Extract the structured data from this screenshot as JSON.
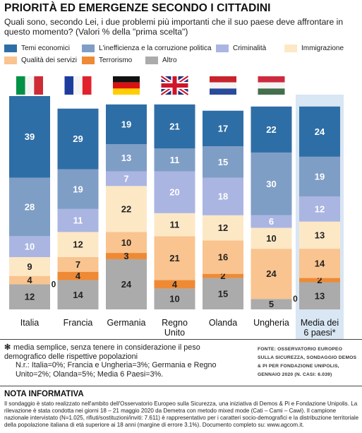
{
  "title": "PRIORITÀ ED EMERGENZE SECONDO I CITTADINI",
  "subtitle": "Quali sono, secondo Lei, i due problemi più importanti che il suo paese deve affrontare in questo momento? (Valori % della \"prima scelta\")",
  "legend": [
    {
      "label": "Temi economici",
      "color": "#2e6ea6"
    },
    {
      "label": "L'inefficienza e la corruzione politica",
      "color": "#7f9ec6"
    },
    {
      "label": "Criminalità",
      "color": "#aab5e2"
    },
    {
      "label": "Immigrazione",
      "color": "#fde8c6"
    },
    {
      "label": "Qualità dei servizi",
      "color": "#f9c48f"
    },
    {
      "label": "Terrorismo",
      "color": "#ee8a35"
    },
    {
      "label": "Altro",
      "color": "#ababab"
    }
  ],
  "chart_data": {
    "type": "bar",
    "stacked": true,
    "categories": [
      "Italia",
      "Francia",
      "Germania",
      "Regno Unito",
      "Olanda",
      "Ungheria",
      "Media dei 6 paesi*"
    ],
    "flags": [
      "italy-flag-icon",
      "france-flag-icon",
      "germany-flag-icon",
      "uk-flag-icon",
      "netherlands-flag-icon",
      "hungary-flag-icon",
      ""
    ],
    "series": [
      {
        "name": "Altro",
        "color": "#ababab",
        "values": [
          12,
          14,
          24,
          10,
          15,
          5,
          13
        ]
      },
      {
        "name": "Terrorismo",
        "color": "#ee8a35",
        "values": [
          0,
          4,
          3,
          4,
          2,
          0,
          2
        ]
      },
      {
        "name": "Qualità dei servizi",
        "color": "#f9c48f",
        "values": [
          4,
          7,
          10,
          21,
          16,
          24,
          14
        ]
      },
      {
        "name": "Immigrazione",
        "color": "#fde8c6",
        "values": [
          9,
          12,
          22,
          11,
          12,
          10,
          13
        ]
      },
      {
        "name": "Criminalità",
        "color": "#aab5e2",
        "values": [
          10,
          11,
          7,
          20,
          18,
          6,
          12
        ]
      },
      {
        "name": "L'inefficienza e la corruzione politica",
        "color": "#7f9ec6",
        "values": [
          28,
          19,
          13,
          11,
          15,
          30,
          19
        ]
      },
      {
        "name": "Temi economici",
        "color": "#2e6ea6",
        "values": [
          39,
          29,
          19,
          21,
          17,
          22,
          24
        ]
      }
    ],
    "ylim": [
      0,
      102
    ]
  },
  "footnote": {
    "symbol": "✻",
    "text": "media semplice, senza tenere in considerazione il peso demografico delle rispettive popolazioni",
    "nr": "N.r.: Italia=0%; Francia e Ungheria=3%; Germania e Regno Unito=2%; Olanda=5%; Media 6 Paesi=3%."
  },
  "source": "FONTE: OSSERVATORIO EUROPEO SULLA SICUREZZA, SONDAGGIO DEMOS & PI PER FONDAZIONE UNIPOLIS, GENNAIO 2020 (N. CASI: 6.039)",
  "note": {
    "title": "NOTA INFORMATIVA",
    "text": "Il sondaggio è stato realizzato nell'ambito dell'Osservatorio Europeo sulla Sicurezza, una iniziativa di Demos & Pi e Fondazione Unipolis. La rilevazione è stata condotta nei giorni 18 – 21 maggio 2020 da Demetra con metodo mixed mode (Cati – Cami – Cawi). Il campione nazionale intervistato (N=1.025, rifiuti/sostituzioni/inviti: 7.611) è rappresentativo per i caratteri socio-demografici e la distribuzione territoriale della popolazione italiana di età superiore ai 18 anni (margine di errore 3.1%). Documento completo su: www.agcom.it."
  }
}
